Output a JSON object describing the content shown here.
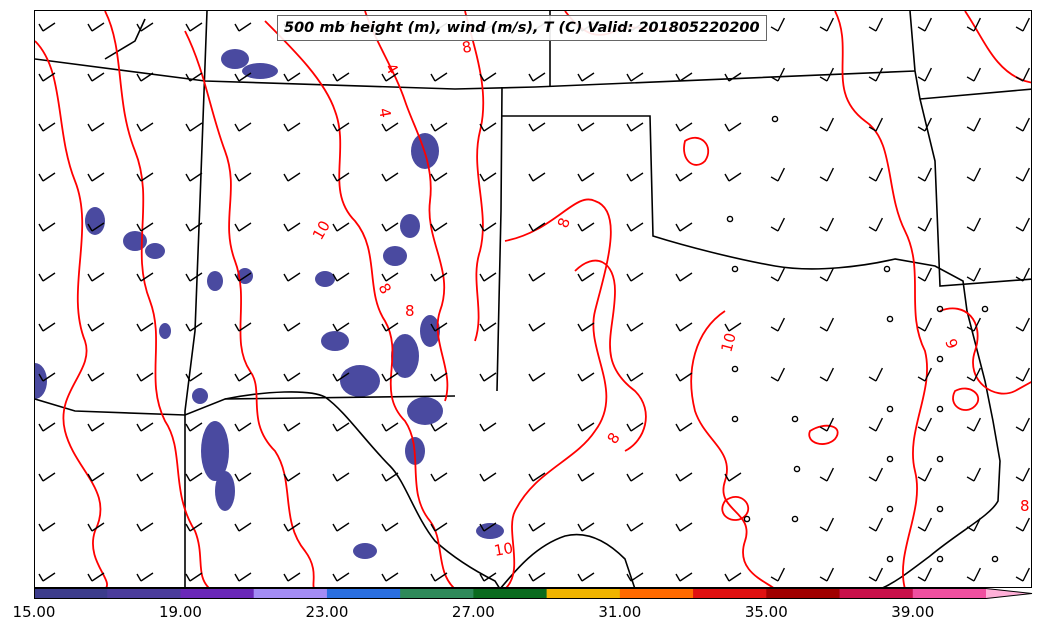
{
  "title": "500 mb height (m), wind (m/s), T (C) Valid: 201805220200",
  "contour_labels": [
    "8",
    "4",
    "4",
    "10",
    "8",
    "8",
    "8",
    "10",
    "9",
    "8",
    "10",
    "8"
  ],
  "colorbar": {
    "colors": [
      "#3c3c8c",
      "#4b3c9c",
      "#6a28b8",
      "#a38cf4",
      "#2a6fe0",
      "#2e8a5a",
      "#0a6b1e",
      "#f0b400",
      "#ff6a00",
      "#e01010",
      "#a00000",
      "#c8104a",
      "#f050a0",
      "#ffb0d8"
    ],
    "tick_labels": [
      "15.00",
      "19.00",
      "23.00",
      "27.00",
      "31.00",
      "35.00",
      "39.00"
    ]
  },
  "colors": {
    "contour": "#ff0000",
    "shading": "#4a4aa0",
    "borders": "#000000"
  }
}
